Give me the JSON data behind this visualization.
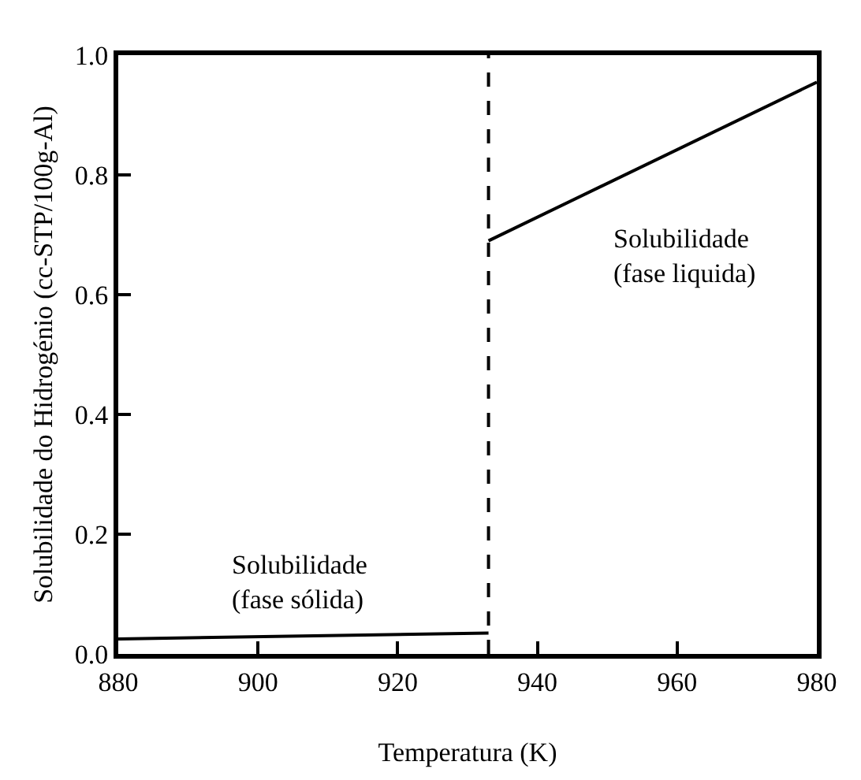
{
  "chart_data": {
    "type": "line",
    "xlabel": "Temperatura (K)",
    "ylabel": "Solubilidade do Hidrogénio (cc-STP/100g-Al)",
    "xlim": [
      880,
      980
    ],
    "xticks": [
      880,
      900,
      920,
      940,
      960,
      980
    ],
    "ylim": [
      0,
      1.0
    ],
    "yticks": [
      {
        "value": 0,
        "label": "0.0"
      },
      {
        "value": 0.2,
        "label": "0.2"
      },
      {
        "value": 0.4,
        "label": "0.4"
      },
      {
        "value": 0.6,
        "label": "0.6"
      },
      {
        "value": 0.8,
        "label": "0.8"
      },
      {
        "value": 1.0,
        "label": "1.0"
      }
    ],
    "series": [
      {
        "color": "#000000",
        "x": [
          880,
          933
        ],
        "values": [
          0.025,
          0.035
        ]
      },
      {
        "color": "#000000",
        "x": [
          933,
          980
        ],
        "values": [
          0.69,
          0.955
        ]
      }
    ],
    "ref_lines": [
      {
        "axis": "x",
        "value": 933,
        "label": null,
        "color": "#000000",
        "line_style": "dashed"
      }
    ],
    "annotations": [
      "Solubilidade\n(fase liquida)",
      "Solubilidade\n(fase sólida)"
    ],
    "marker": "none",
    "line_style": "solid"
  }
}
